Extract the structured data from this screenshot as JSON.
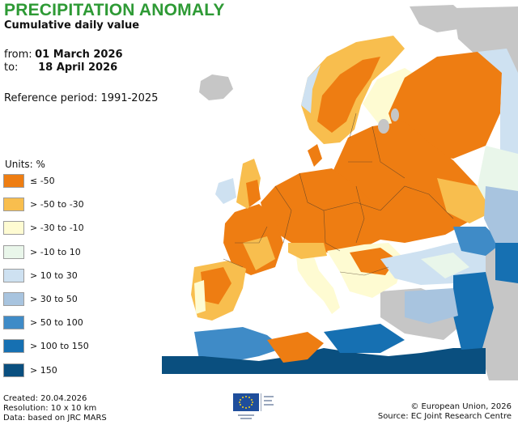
{
  "header": {
    "title": "PRECIPITATION ANOMALY",
    "subtitle": "Cumulative daily value"
  },
  "period": {
    "from_label": "from:",
    "from_value": "01 March 2026",
    "to_label": "to:",
    "to_value": "18 April 2026"
  },
  "reference": "Reference period: 1991-2025",
  "legend": {
    "units": "Units: %",
    "classes": [
      {
        "label": "≤ -50",
        "color": "#ee7d12"
      },
      {
        "label": "> -50 to -30",
        "color": "#f8be4e"
      },
      {
        "label": "> -30 to -10",
        "color": "#fefbd2"
      },
      {
        "label": "> -10 to 10",
        "color": "#e9f6ea"
      },
      {
        "label": "> 10 to 30",
        "color": "#cee1f1"
      },
      {
        "label": "> 30 to 50",
        "color": "#a8c4df"
      },
      {
        "label": "> 50 to 100",
        "color": "#3f8bc7"
      },
      {
        "label": "> 100 to 150",
        "color": "#1670b2"
      },
      {
        "label": "> 150",
        "color": "#0a4f7f"
      }
    ]
  },
  "footer": {
    "created": "Created: 20.04.2026",
    "resolution": "Resolution: 10 x 10 km",
    "data_source": "Data: based on JRC MARS",
    "copyright": "© European Union, 2026",
    "source": "Source: EC Joint Research Centre"
  },
  "map_colors": {
    "no_data_land": "#c6c6c6",
    "sea": "#ffffff",
    "borders": "#4a3a2a"
  }
}
